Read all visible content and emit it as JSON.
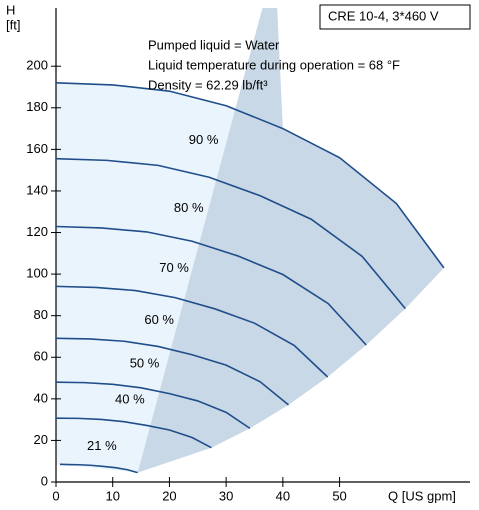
{
  "chart_data": {
    "type": "line",
    "title": "CRE 10-4, 3*460 V",
    "annotations": [
      "Pumped liquid = Water",
      "Liquid temperature during operation = 68 °F",
      "Density = 62.29 lb/ft³"
    ],
    "y_label": [
      "H",
      "[ft]"
    ],
    "x_label": "Q [US gpm]",
    "xlim": [
      0,
      73
    ],
    "ylim": [
      0,
      228
    ],
    "xticks": [
      0,
      10,
      20,
      30,
      40,
      50
    ],
    "yticks": [
      0,
      20,
      40,
      60,
      80,
      100,
      120,
      140,
      160,
      180,
      200
    ],
    "color": "#1f4e8a",
    "light_area": {
      "color": "#eaf4fc",
      "x": [
        0,
        10,
        20,
        32,
        14.6,
        0
      ],
      "y": [
        192,
        191,
        188,
        180,
        4.5,
        8.5
      ]
    },
    "dark_area": {
      "color": "#c9d8e6",
      "x": [
        14.4,
        36.4,
        39,
        40,
        50,
        60,
        68.4,
        61.6,
        54.7,
        47.9,
        41,
        34.2,
        27.4,
        14.4
      ],
      "y": [
        4.5,
        228,
        228,
        170,
        156,
        134,
        103,
        83.4,
        65.9,
        50.5,
        37.1,
        25.8,
        16.5,
        4.5
      ]
    },
    "series": [
      {
        "name": null,
        "x": [
          0,
          10,
          20,
          30,
          40,
          50,
          60,
          68.4
        ],
        "values": [
          192,
          191,
          188,
          181,
          170,
          156,
          134,
          103
        ]
      },
      {
        "name": "90 %",
        "x": [
          0,
          9,
          18,
          27,
          36,
          45,
          54,
          61.6
        ],
        "values": [
          155.5,
          154.7,
          152.3,
          146.6,
          137.7,
          126.4,
          108.5,
          83.4
        ]
      },
      {
        "name": "80 %",
        "x": [
          0,
          8,
          16,
          24,
          32,
          40,
          48,
          54.7
        ],
        "values": [
          122.9,
          122.2,
          120.3,
          115.8,
          108.8,
          99.8,
          85.8,
          65.9
        ]
      },
      {
        "name": "70 %",
        "x": [
          0,
          7,
          14,
          21,
          28,
          35,
          42,
          47.9
        ],
        "values": [
          94.1,
          93.6,
          92.1,
          88.7,
          83.3,
          76.4,
          65.7,
          50.5
        ]
      },
      {
        "name": "60 %",
        "x": [
          0,
          6,
          12,
          18,
          24,
          30,
          36,
          41
        ],
        "values": [
          69.1,
          68.8,
          67.7,
          65.2,
          61.2,
          56.2,
          48.2,
          37.1
        ]
      },
      {
        "name": "50 %",
        "x": [
          0,
          5,
          10,
          15,
          20,
          25,
          30,
          34.2
        ],
        "values": [
          48,
          47.8,
          47,
          45.3,
          42.5,
          39,
          33.5,
          25.8
        ]
      },
      {
        "name": "40 %",
        "x": [
          0,
          4,
          8,
          12,
          16,
          20,
          24,
          27.4
        ],
        "values": [
          30.7,
          30.6,
          30.1,
          29,
          27.2,
          25,
          21.4,
          16.5
        ]
      },
      {
        "name": "21 %",
        "x": [
          0.7,
          2.1,
          4.2,
          6.3,
          8.4,
          10.5,
          12.6,
          14.4
        ],
        "values": [
          8.5,
          8.4,
          8.3,
          8,
          7.5,
          6.9,
          5.9,
          4.5
        ]
      }
    ]
  }
}
